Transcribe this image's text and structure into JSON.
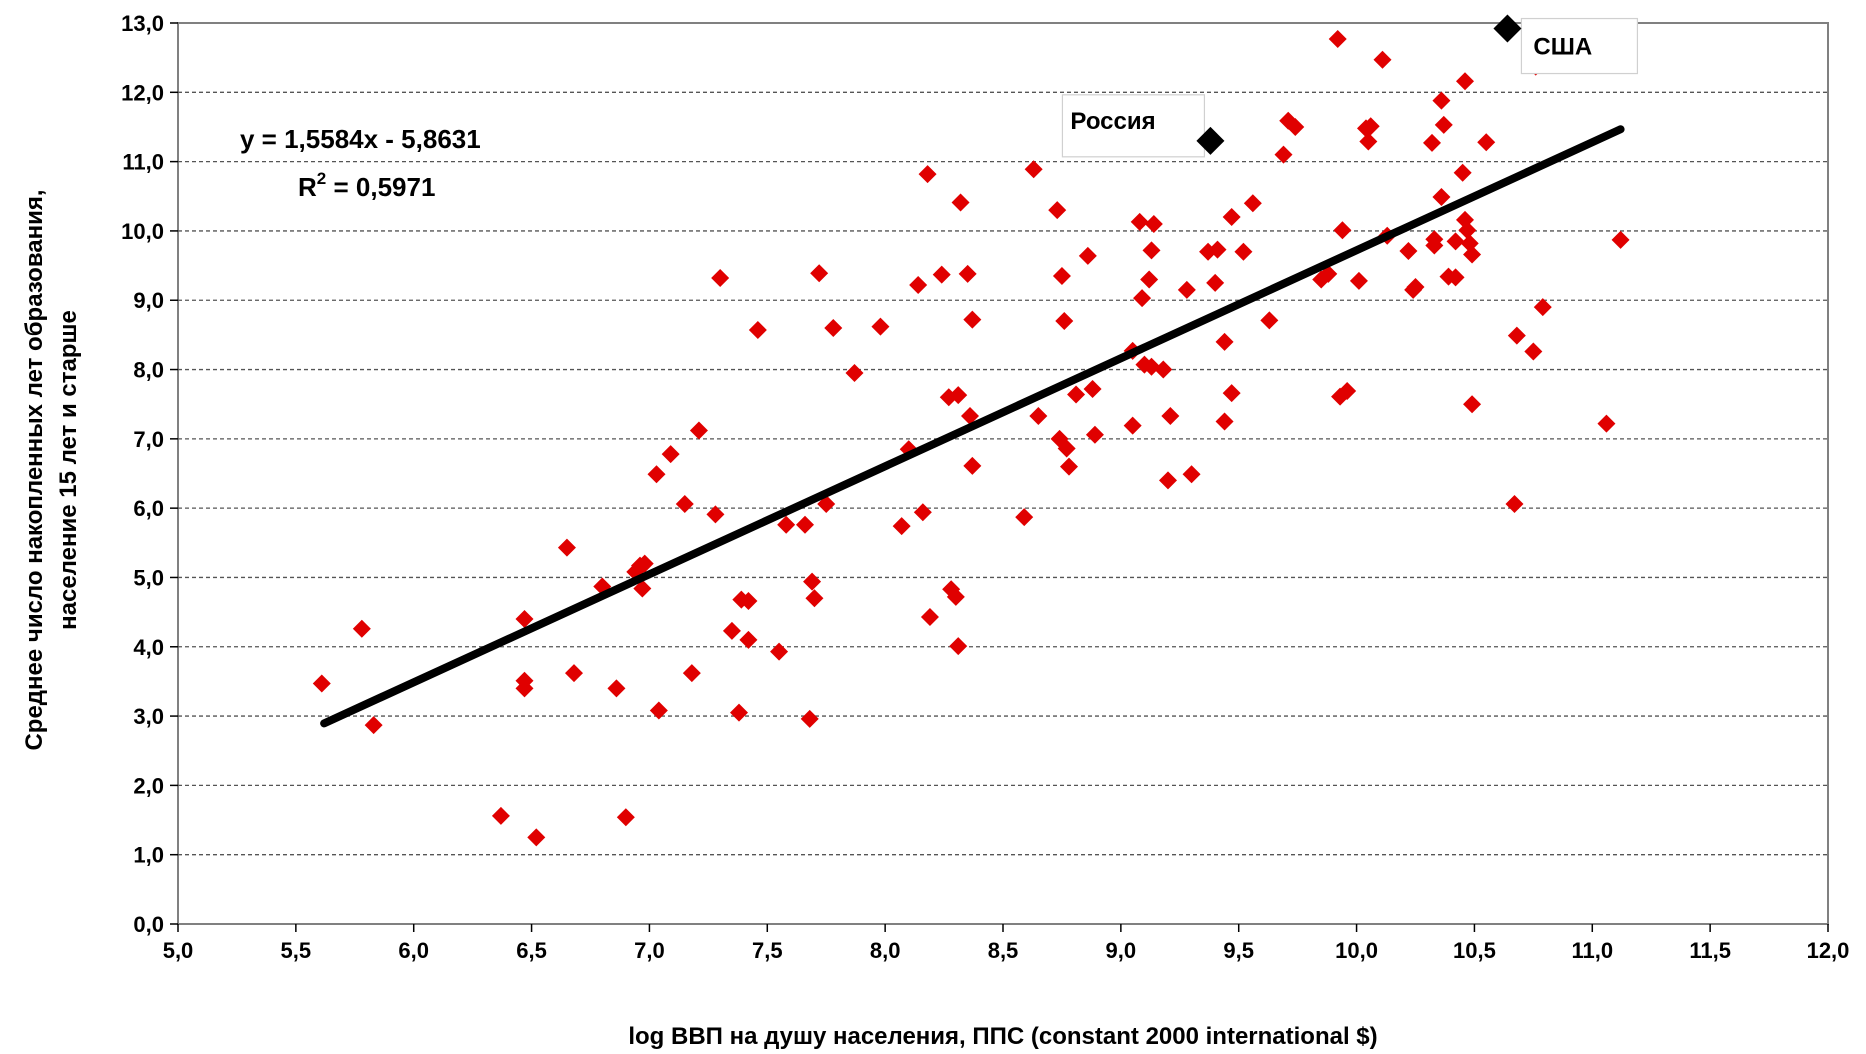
{
  "chart_data": {
    "type": "scatter",
    "xlabel": "log ВВП на душу населения, ППС (constant 2000 international $)",
    "ylabel_line1": "Среднее число накопленных лет образования,",
    "ylabel_line2": "население 15 лет и старше",
    "xlim": [
      5.0,
      12.0
    ],
    "ylim": [
      0.0,
      13.0
    ],
    "x_ticks": [
      "5,0",
      "5,5",
      "6,0",
      "6,5",
      "7,0",
      "7,5",
      "8,0",
      "8,5",
      "9,0",
      "9,5",
      "10,0",
      "10,5",
      "11,0",
      "11,5",
      "12,0"
    ],
    "y_ticks": [
      "0,0",
      "1,0",
      "2,0",
      "3,0",
      "4,0",
      "5,0",
      "6,0",
      "7,0",
      "8,0",
      "9,0",
      "10,0",
      "11,0",
      "12,0",
      "13,0"
    ],
    "grid": "horizontal-dashed",
    "point_color": "#e00000",
    "highlight_color": "#000000",
    "trendline": {
      "equation": "y = 1,5584x - 5,8631",
      "r2_label": "R",
      "r2_sup": "2",
      "r2_value": " = 0,5971",
      "slope": 1.5584,
      "intercept": -5.8631,
      "x_from": 5.62,
      "x_to": 11.12
    },
    "highlights": [
      {
        "label": "США",
        "x": 10.64,
        "y": 12.92
      },
      {
        "label": "Россия",
        "x": 9.38,
        "y": 11.3
      }
    ],
    "points": [
      [
        5.61,
        3.47
      ],
      [
        5.78,
        4.26
      ],
      [
        5.83,
        2.87
      ],
      [
        6.37,
        1.56
      ],
      [
        6.47,
        4.4
      ],
      [
        6.47,
        3.4
      ],
      [
        6.47,
        3.51
      ],
      [
        6.52,
        1.25
      ],
      [
        6.65,
        5.43
      ],
      [
        6.68,
        3.62
      ],
      [
        6.8,
        4.87
      ],
      [
        6.86,
        3.4
      ],
      [
        6.9,
        1.54
      ],
      [
        6.94,
        5.08
      ],
      [
        6.96,
        5.17
      ],
      [
        6.97,
        4.84
      ],
      [
        6.98,
        5.2
      ],
      [
        7.03,
        6.49
      ],
      [
        7.04,
        3.08
      ],
      [
        7.09,
        6.78
      ],
      [
        7.15,
        6.06
      ],
      [
        7.18,
        3.62
      ],
      [
        7.21,
        7.12
      ],
      [
        7.28,
        5.91
      ],
      [
        7.3,
        9.32
      ],
      [
        7.35,
        4.23
      ],
      [
        7.38,
        3.05
      ],
      [
        7.39,
        4.68
      ],
      [
        7.42,
        4.1
      ],
      [
        7.42,
        4.66
      ],
      [
        7.46,
        8.57
      ],
      [
        7.55,
        3.93
      ],
      [
        7.58,
        5.76
      ],
      [
        7.66,
        5.76
      ],
      [
        7.68,
        2.96
      ],
      [
        7.69,
        4.94
      ],
      [
        7.7,
        4.7
      ],
      [
        7.72,
        9.39
      ],
      [
        7.75,
        6.06
      ],
      [
        7.78,
        8.6
      ],
      [
        7.87,
        7.95
      ],
      [
        7.98,
        8.62
      ],
      [
        8.07,
        5.74
      ],
      [
        8.1,
        6.85
      ],
      [
        8.14,
        9.22
      ],
      [
        8.16,
        5.94
      ],
      [
        8.18,
        10.82
      ],
      [
        8.19,
        4.43
      ],
      [
        8.24,
        9.37
      ],
      [
        8.27,
        7.6
      ],
      [
        8.28,
        4.83
      ],
      [
        8.3,
        4.72
      ],
      [
        8.31,
        7.63
      ],
      [
        8.31,
        4.01
      ],
      [
        8.32,
        10.41
      ],
      [
        8.35,
        9.38
      ],
      [
        8.36,
        7.33
      ],
      [
        8.37,
        8.72
      ],
      [
        8.37,
        6.61
      ],
      [
        8.59,
        5.87
      ],
      [
        8.63,
        10.89
      ],
      [
        8.65,
        7.33
      ],
      [
        8.73,
        10.3
      ],
      [
        8.74,
        7.0
      ],
      [
        8.75,
        9.35
      ],
      [
        8.76,
        8.7
      ],
      [
        8.77,
        6.86
      ],
      [
        8.78,
        6.6
      ],
      [
        8.81,
        7.64
      ],
      [
        8.86,
        9.64
      ],
      [
        8.88,
        7.72
      ],
      [
        8.89,
        7.06
      ],
      [
        9.05,
        8.27
      ],
      [
        9.05,
        7.19
      ],
      [
        9.08,
        10.13
      ],
      [
        9.09,
        9.03
      ],
      [
        9.1,
        8.07
      ],
      [
        9.12,
        9.3
      ],
      [
        9.13,
        8.04
      ],
      [
        9.13,
        9.72
      ],
      [
        9.14,
        10.1
      ],
      [
        9.18,
        8.0
      ],
      [
        9.2,
        6.4
      ],
      [
        9.21,
        7.33
      ],
      [
        9.28,
        9.15
      ],
      [
        9.3,
        6.49
      ],
      [
        9.37,
        9.7
      ],
      [
        9.4,
        9.25
      ],
      [
        9.41,
        9.73
      ],
      [
        9.44,
        8.4
      ],
      [
        9.44,
        7.25
      ],
      [
        9.47,
        10.2
      ],
      [
        9.47,
        7.66
      ],
      [
        9.52,
        9.7
      ],
      [
        9.56,
        10.4
      ],
      [
        9.63,
        8.71
      ],
      [
        9.69,
        11.1
      ],
      [
        9.71,
        11.59
      ],
      [
        9.74,
        11.5
      ],
      [
        9.85,
        9.3
      ],
      [
        9.88,
        9.38
      ],
      [
        9.92,
        12.77
      ],
      [
        9.93,
        7.61
      ],
      [
        9.94,
        10.01
      ],
      [
        9.96,
        7.69
      ],
      [
        10.01,
        9.28
      ],
      [
        10.04,
        11.48
      ],
      [
        10.05,
        11.29
      ],
      [
        10.06,
        11.51
      ],
      [
        10.11,
        12.47
      ],
      [
        10.13,
        9.93
      ],
      [
        10.22,
        9.71
      ],
      [
        10.24,
        9.15
      ],
      [
        10.25,
        9.19
      ],
      [
        10.32,
        11.27
      ],
      [
        10.33,
        9.79
      ],
      [
        10.33,
        9.88
      ],
      [
        10.36,
        10.49
      ],
      [
        10.36,
        11.88
      ],
      [
        10.37,
        11.53
      ],
      [
        10.39,
        9.34
      ],
      [
        10.42,
        9.85
      ],
      [
        10.42,
        9.33
      ],
      [
        10.45,
        10.84
      ],
      [
        10.46,
        10.16
      ],
      [
        10.46,
        12.16
      ],
      [
        10.47,
        10.01
      ],
      [
        10.48,
        9.82
      ],
      [
        10.49,
        9.66
      ],
      [
        10.49,
        7.5
      ],
      [
        10.55,
        11.28
      ],
      [
        10.67,
        6.06
      ],
      [
        10.68,
        8.49
      ],
      [
        10.75,
        8.26
      ],
      [
        10.76,
        12.37
      ],
      [
        10.79,
        8.9
      ],
      [
        11.06,
        7.22
      ],
      [
        11.12,
        9.87
      ]
    ]
  }
}
